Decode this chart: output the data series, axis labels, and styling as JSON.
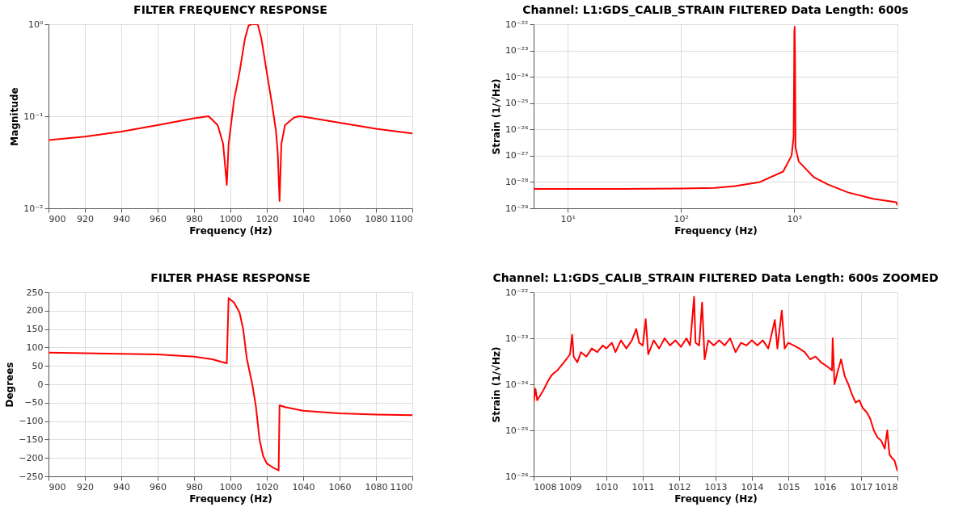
{
  "chart_data": [
    {
      "type": "line",
      "title": "FILTER FREQUENCY RESPONSE",
      "xlabel": "Frequency (Hz)",
      "ylabel": "Magnitude",
      "log": "y",
      "grid": true,
      "x": [
        900,
        920,
        940,
        960,
        980,
        988,
        993,
        996,
        998,
        999,
        1002,
        1005,
        1008,
        1010,
        1012,
        1015,
        1017,
        1020,
        1023,
        1025,
        1026,
        1027,
        1028,
        1030,
        1035,
        1038,
        1040,
        1060,
        1080,
        1100
      ],
      "series": [
        {
          "color": "#ff0000",
          "values": [
            0.055,
            0.06,
            0.068,
            0.08,
            0.095,
            0.1,
            0.08,
            0.05,
            0.018,
            0.05,
            0.15,
            0.3,
            0.7,
            0.97,
            1,
            1,
            0.7,
            0.3,
            0.13,
            0.07,
            0.04,
            0.012,
            0.05,
            0.08,
            0.097,
            0.1,
            0.099,
            0.085,
            0.073,
            0.065
          ]
        }
      ],
      "xlim": [
        900,
        1100
      ],
      "ylim": [
        0.01,
        1
      ],
      "xticks": [
        900,
        920,
        940,
        960,
        980,
        1000,
        1020,
        1040,
        1060,
        1080,
        1100
      ],
      "yticks": [
        {
          "value": 0.01,
          "label": "10⁻²"
        },
        {
          "value": 0.1,
          "label": "10⁻¹"
        },
        {
          "value": 1,
          "label": "10⁰"
        }
      ]
    },
    {
      "type": "line",
      "title": "Channel: L1:GDS_CALIB_STRAIN FILTERED  Data Length: 600s",
      "xlabel": "Frequency (Hz)",
      "ylabel": "Strain (1/√Hz)",
      "log": "xy",
      "grid": true,
      "x": [
        5,
        10,
        30,
        100,
        200,
        300,
        500,
        800,
        950,
        990,
        1000,
        1005,
        1012,
        1020,
        1030,
        1100,
        1500,
        2000,
        3000,
        5000,
        8000,
        8192
      ],
      "series": [
        {
          "color": "#ff0000",
          "values": [
            5.5e-29,
            5.5e-29,
            5.5e-29,
            5.7e-29,
            6e-29,
            7e-29,
            1e-28,
            2.5e-28,
            1e-27,
            5e-27,
            1e-24,
            5e-23,
            8e-23,
            5e-24,
            2e-27,
            6e-28,
            1.5e-28,
            8e-29,
            4e-29,
            2.3e-29,
            1.7e-29,
            1.3e-29
          ]
        }
      ],
      "xlim": [
        5,
        8192
      ],
      "ylim": [
        1e-29,
        1e-22
      ],
      "xticks": [
        {
          "value": 10,
          "label": "10¹"
        },
        {
          "value": 100,
          "label": "10²"
        },
        {
          "value": 1000,
          "label": "10³"
        }
      ],
      "yticks": [
        {
          "value": 1e-29,
          "label": "10⁻²⁹"
        },
        {
          "value": 1e-28,
          "label": "10⁻²⁸"
        },
        {
          "value": 1e-27,
          "label": "10⁻²⁷"
        },
        {
          "value": 1e-26,
          "label": "10⁻²⁶"
        },
        {
          "value": 1e-25,
          "label": "10⁻²⁵"
        },
        {
          "value": 1e-24,
          "label": "10⁻²⁴"
        },
        {
          "value": 1e-23,
          "label": "10⁻²³"
        },
        {
          "value": 1e-22,
          "label": "10⁻²²"
        }
      ]
    },
    {
      "type": "line",
      "title": "FILTER PHASE RESPONSE",
      "xlabel": "Frequency (Hz)",
      "ylabel": "Degrees",
      "grid": true,
      "x": [
        900,
        940,
        960,
        980,
        990,
        998,
        999,
        1002,
        1005,
        1007,
        1009,
        1012,
        1014,
        1016,
        1018,
        1020,
        1024,
        1026.5,
        1027,
        1030,
        1040,
        1060,
        1080,
        1100
      ],
      "series": [
        {
          "color": "#ff0000",
          "values": [
            86,
            83,
            81,
            75,
            68,
            57,
            234,
            222,
            195,
            150,
            70,
            0,
            -60,
            -150,
            -195,
            -215,
            -228,
            -234,
            -57,
            -62,
            -72,
            -79,
            -82,
            -84
          ]
        }
      ],
      "xlim": [
        900,
        1100
      ],
      "ylim": [
        -250,
        250
      ],
      "xticks": [
        900,
        920,
        940,
        960,
        980,
        1000,
        1020,
        1040,
        1060,
        1080,
        1100
      ],
      "yticks": [
        -250,
        -200,
        -150,
        -100,
        -50,
        0,
        50,
        100,
        150,
        200,
        250
      ]
    },
    {
      "type": "line",
      "title": "Channel: L1:GDS_CALIB_STRAIN FILTERED  Data Length: 600s ZOOMED",
      "xlabel": "Frequency (Hz)",
      "ylabel": "Strain (1/√Hz)",
      "log": "y",
      "grid": true,
      "x": [
        1008.0,
        1008.05,
        1008.1,
        1008.25,
        1008.4,
        1008.5,
        1008.65,
        1008.8,
        1008.9,
        1009.0,
        1009.06,
        1009.1,
        1009.2,
        1009.3,
        1009.45,
        1009.6,
        1009.75,
        1009.9,
        1010.0,
        1010.15,
        1010.25,
        1010.4,
        1010.55,
        1010.7,
        1010.82,
        1010.9,
        1011.0,
        1011.08,
        1011.15,
        1011.3,
        1011.45,
        1011.6,
        1011.75,
        1011.9,
        1012.05,
        1012.2,
        1012.3,
        1012.41,
        1012.45,
        1012.55,
        1012.63,
        1012.7,
        1012.8,
        1012.95,
        1013.1,
        1013.25,
        1013.4,
        1013.55,
        1013.7,
        1013.85,
        1014.0,
        1014.15,
        1014.3,
        1014.45,
        1014.63,
        1014.7,
        1014.82,
        1014.9,
        1015.0,
        1015.15,
        1015.3,
        1015.45,
        1015.6,
        1015.75,
        1015.9,
        1016.05,
        1016.2,
        1016.22,
        1016.27,
        1016.35,
        1016.45,
        1016.55,
        1016.65,
        1016.75,
        1016.85,
        1016.95,
        1017.05,
        1017.15,
        1017.25,
        1017.35,
        1017.45,
        1017.55,
        1017.65,
        1017.72,
        1017.78,
        1017.85,
        1017.92,
        1018.0
      ],
      "series": [
        {
          "color": "#ff0000",
          "values": [
            4e-25,
            8e-25,
            4.5e-25,
            7e-25,
            1.2e-24,
            1.6e-24,
            2e-24,
            2.8e-24,
            3.5e-24,
            4.5e-24,
            1.2e-23,
            4e-24,
            3e-24,
            5e-24,
            4e-24,
            6e-24,
            5e-24,
            7e-24,
            6e-24,
            8e-24,
            5e-24,
            9e-24,
            6e-24,
            9e-24,
            1.6e-23,
            8e-24,
            7e-24,
            2.6e-23,
            4.5e-24,
            9e-24,
            6e-24,
            1e-23,
            7e-24,
            9e-24,
            6.5e-24,
            1e-23,
            7e-24,
            8e-23,
            8e-24,
            7e-24,
            6e-23,
            3.5e-24,
            9e-24,
            7e-24,
            9e-24,
            7e-24,
            1e-23,
            5e-24,
            8e-24,
            7e-24,
            9e-24,
            7e-24,
            9e-24,
            6e-24,
            2.5e-23,
            6e-24,
            4e-23,
            6e-24,
            8e-24,
            7e-24,
            6e-24,
            5e-24,
            3.5e-24,
            4e-24,
            3e-24,
            2.5e-24,
            2e-24,
            1e-23,
            1e-24,
            1.8e-24,
            3.5e-24,
            1.5e-24,
            1e-24,
            6e-25,
            4e-25,
            4.5e-25,
            3e-25,
            2.5e-25,
            1.8e-25,
            1e-25,
            7e-26,
            6e-26,
            4e-26,
            1e-25,
            3e-26,
            2.5e-26,
            2.2e-26,
            1.3e-26
          ]
        }
      ],
      "xlim": [
        1008,
        1018
      ],
      "ylim": [
        1e-26,
        1e-22
      ],
      "xticks": [
        1008,
        1009,
        1010,
        1011,
        1012,
        1013,
        1014,
        1015,
        1016,
        1017,
        1018
      ],
      "yticks": [
        {
          "value": 1e-26,
          "label": "10⁻²⁶"
        },
        {
          "value": 1e-25,
          "label": "10⁻²⁵"
        },
        {
          "value": 1e-24,
          "label": "10⁻²⁴"
        },
        {
          "value": 1e-23,
          "label": "10⁻²³"
        },
        {
          "value": 1e-22,
          "label": "10⁻²²"
        }
      ]
    }
  ]
}
